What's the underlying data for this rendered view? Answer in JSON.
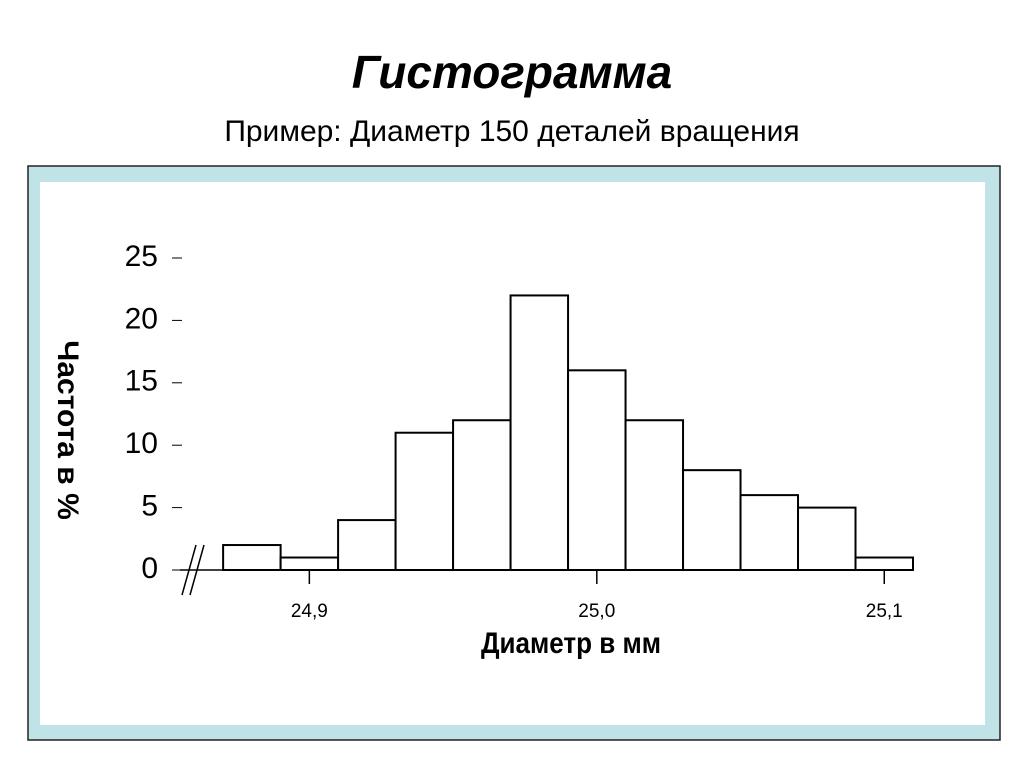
{
  "chart_data": {
    "type": "histogram",
    "title": "Гистограмма",
    "subtitle": "Пример: Диаметр 150 деталей вращения",
    "xlabel": "Диаметр в мм",
    "ylabel": "Частота в %",
    "bins": [
      24.87,
      24.89,
      24.91,
      24.93,
      24.95,
      24.97,
      24.99,
      25.01,
      25.03,
      25.05,
      25.07,
      25.09,
      25.11
    ],
    "values": [
      2,
      1,
      4,
      11,
      12,
      22,
      16,
      12,
      8,
      6,
      5,
      1
    ],
    "color": "#ffffff",
    "xlim": [
      24.855,
      25.11
    ],
    "ylim": [
      0,
      25
    ],
    "xticks": [
      {
        "value": 24.9,
        "label": "24,9"
      },
      {
        "value": 25.0,
        "label": "25,0"
      },
      {
        "value": 25.1,
        "label": "25,1"
      }
    ],
    "yticks": [
      0,
      5,
      10,
      15,
      20,
      25
    ]
  }
}
